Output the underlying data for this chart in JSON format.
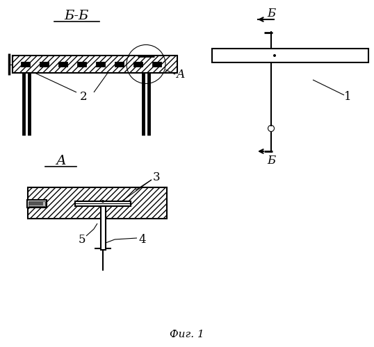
{
  "bg_color": "#ffffff",
  "line_color": "#000000",
  "fig_label": "Фиг. 1",
  "section_bb_label": "Б-Б",
  "section_a_label": "А",
  "label_b": "Б",
  "num_1": "1",
  "num_2": "2",
  "num_3": "3",
  "num_4": "4",
  "num_5": "5",
  "lw_main": 1.5,
  "lw_bold": 3.5,
  "lw_thin": 0.8
}
